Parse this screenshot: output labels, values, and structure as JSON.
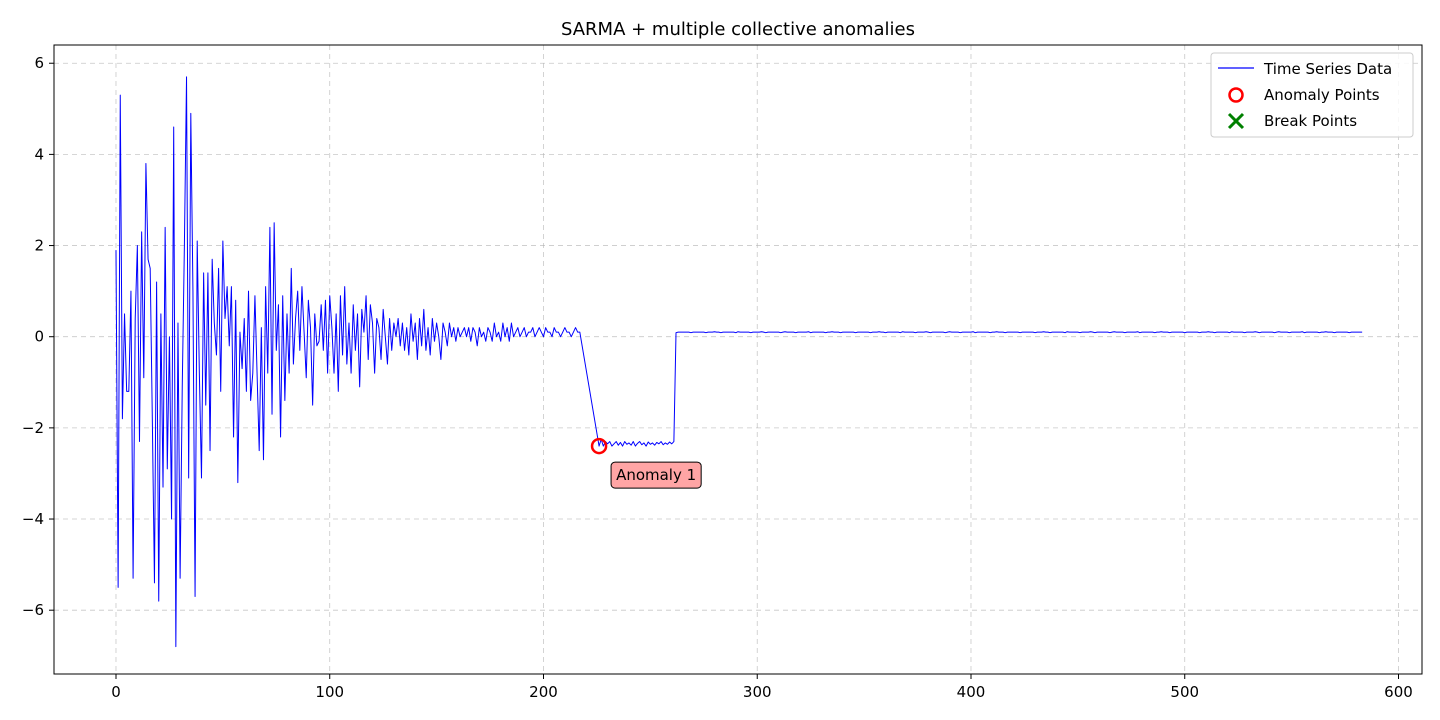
{
  "chart_data": {
    "type": "line",
    "title": "SARMA + multiple collective anomalies",
    "xlabel": "",
    "ylabel": "",
    "xlim": [
      -29,
      611
    ],
    "ylim": [
      -7.4,
      6.4
    ],
    "xticks": [
      0,
      100,
      200,
      300,
      400,
      500,
      600
    ],
    "yticks": [
      6,
      4,
      2,
      0,
      -2,
      -4,
      -6
    ],
    "xtick_labels": [
      "0",
      "100",
      "200",
      "300",
      "400",
      "500",
      "600"
    ],
    "ytick_labels": [
      "6",
      "4",
      "2",
      "0",
      "−2",
      "−4",
      "−6"
    ],
    "grid": true,
    "legend_position": "top-right",
    "legend": [
      {
        "label": "Time Series Data",
        "marker": "line",
        "color": "#0000ff"
      },
      {
        "label": "Anomaly Points",
        "marker": "circle",
        "color": "#ff0000"
      },
      {
        "label": "Break Points",
        "marker": "x",
        "color": "#008000"
      }
    ],
    "series": [
      {
        "name": "Time Series Data",
        "color": "#0000ff",
        "segments": [
          {
            "x_start": 0,
            "y": [
              1.9,
              -5.5,
              5.3,
              -1.8,
              0.5,
              -1.2,
              -1.2,
              1.0,
              -5.3,
              0.4,
              2.0,
              -2.3,
              2.3,
              -0.9,
              3.8,
              1.7,
              1.5,
              -1.8,
              -5.4,
              1.2,
              -5.8,
              0.5,
              -3.3,
              2.4,
              -2.9,
              0.0,
              -4.0,
              4.6,
              -6.8,
              0.3,
              -5.3,
              -1.1,
              2.0,
              5.7,
              -3.1,
              4.9,
              1.0,
              -5.7,
              2.1,
              -0.8,
              -3.1,
              1.4,
              -1.5,
              1.4,
              -2.5,
              1.7,
              0.3,
              -0.4,
              1.5,
              -1.2,
              2.1,
              0.4,
              1.1,
              -0.2,
              1.1,
              -2.2,
              0.8,
              -3.2,
              0.1,
              -0.7,
              0.4,
              -1.2,
              1.0,
              -1.4,
              -0.8,
              0.9,
              -0.8,
              -2.5,
              0.2,
              -2.7,
              1.1,
              -0.8,
              2.4,
              -1.7,
              2.5,
              -0.3,
              0.7,
              -2.2,
              0.9,
              -1.4,
              0.5,
              -0.8,
              1.5,
              -0.6,
              0.4,
              1.0,
              -0.3,
              1.1,
              0.1,
              -0.9,
              0.8,
              0.2,
              -1.5,
              0.5,
              -0.2,
              -0.1,
              0.7,
              -0.3,
              0.8,
              -0.8,
              0.9,
              0.2,
              -0.8,
              0.5,
              -1.2,
              0.9,
              -0.4,
              1.1,
              -0.6,
              0.3,
              -0.8,
              0.7,
              -0.3,
              0.5,
              -1.1,
              0.6,
              0.1,
              0.9,
              -0.5,
              0.7,
              0.3,
              -0.8,
              0.4,
              0.2,
              -0.5,
              0.6,
              0.0,
              -0.6,
              0.4,
              -0.3,
              0.3,
              0.0,
              0.4,
              -0.2,
              0.3,
              -0.3,
              0.2,
              -0.4,
              0.5,
              -0.1,
              0.3,
              -0.5,
              0.4,
              -0.2,
              0.6,
              -0.3,
              0.2,
              -0.4,
              0.4,
              -0.1,
              0.3,
              0.0,
              -0.5,
              0.3,
              0.1,
              -0.2,
              0.3,
              0.0,
              0.2,
              -0.1,
              0.2,
              0.0,
              0.1,
              0.2,
              0.0,
              0.2,
              -0.1,
              0.2,
              0.1,
              -0.2,
              0.2,
              0.0,
              0.1,
              -0.1,
              0.2,
              0.1,
              -0.1,
              0.3,
              0.0,
              0.1,
              -0.1,
              0.3,
              0.0,
              0.2,
              -0.1,
              0.3,
              0.0,
              0.1,
              0.2,
              0.0,
              0.1,
              0.2,
              0.0,
              0.1,
              0.1,
              0.2,
              0.0,
              0.1,
              0.2,
              0.1,
              0.0,
              0.2,
              0.1,
              0.1,
              0.0,
              0.2,
              0.1,
              0.1,
              0.0,
              0.1,
              0.2,
              0.1,
              0.1,
              0.0,
              0.1,
              0.2,
              0.1,
              0.1
            ]
          },
          {
            "x_start": 226,
            "y": [
              -2.4,
              -2.25,
              -2.4,
              -2.3,
              -2.35,
              -2.3,
              -2.4,
              -2.35,
              -2.3,
              -2.38,
              -2.32,
              -2.4,
              -2.3,
              -2.36,
              -2.33,
              -2.38,
              -2.3,
              -2.4,
              -2.34,
              -2.3,
              -2.37,
              -2.33,
              -2.4,
              -2.31,
              -2.36,
              -2.33,
              -2.38,
              -2.32,
              -2.35,
              -2.3,
              -2.37,
              -2.33,
              -2.36,
              -2.31,
              -2.35,
              -2.3
            ]
          },
          {
            "x_start": 262,
            "constant": 0.1,
            "x_end": 583
          }
        ]
      }
    ],
    "anomalies": [
      {
        "x": 226,
        "y": -2.4,
        "label": "Anomaly 1"
      }
    ]
  }
}
